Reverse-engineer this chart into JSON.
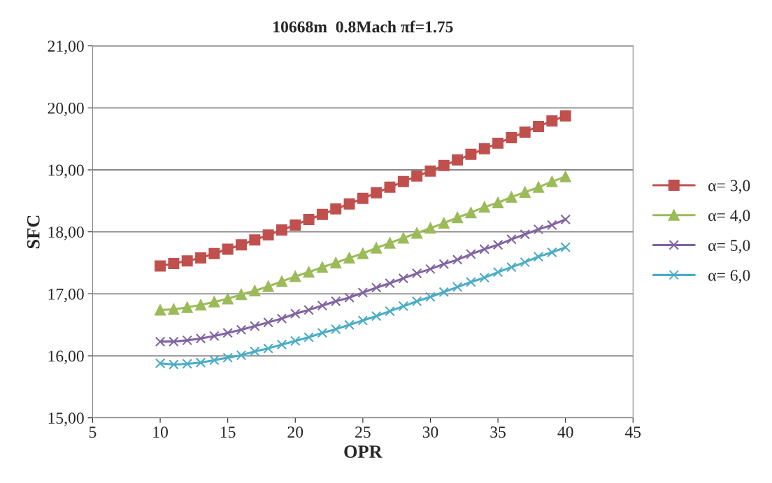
{
  "chart_data": {
    "type": "line",
    "title": "10668m  0.8Mach πf=1.75",
    "xlabel": "OPR",
    "ylabel": "SFC",
    "x": [
      10,
      11,
      12,
      13,
      14,
      15,
      16,
      17,
      18,
      19,
      20,
      21,
      22,
      23,
      24,
      25,
      26,
      27,
      28,
      29,
      30,
      31,
      32,
      33,
      34,
      35,
      36,
      37,
      38,
      39,
      40
    ],
    "series": [
      {
        "name": "α= 3,0",
        "color": "#c0504d",
        "marker": "square",
        "values": [
          17.45,
          17.49,
          17.53,
          17.58,
          17.65,
          17.72,
          17.79,
          17.87,
          17.95,
          18.03,
          18.11,
          18.2,
          18.28,
          18.37,
          18.45,
          18.54,
          18.63,
          18.72,
          18.81,
          18.9,
          18.98,
          19.07,
          19.16,
          19.25,
          19.34,
          19.43,
          19.52,
          19.61,
          19.7,
          19.79,
          19.87
        ]
      },
      {
        "name": "α= 4,0",
        "color": "#9bbb59",
        "marker": "triangle",
        "values": [
          16.74,
          16.75,
          16.78,
          16.82,
          16.87,
          16.92,
          16.99,
          17.05,
          17.12,
          17.2,
          17.28,
          17.35,
          17.43,
          17.5,
          17.58,
          17.65,
          17.74,
          17.82,
          17.9,
          17.98,
          18.06,
          18.14,
          18.23,
          18.31,
          18.4,
          18.47,
          18.56,
          18.64,
          18.72,
          18.81,
          18.89
        ]
      },
      {
        "name": "α= 5,0",
        "color": "#8064a2",
        "marker": "cross",
        "values": [
          16.23,
          16.23,
          16.25,
          16.28,
          16.32,
          16.37,
          16.42,
          16.48,
          16.54,
          16.6,
          16.68,
          16.74,
          16.81,
          16.88,
          16.94,
          17.02,
          17.1,
          17.17,
          17.25,
          17.33,
          17.4,
          17.48,
          17.55,
          17.64,
          17.72,
          17.79,
          17.88,
          17.96,
          18.04,
          18.11,
          18.2
        ]
      },
      {
        "name": "α= 6,0",
        "color": "#4bacc6",
        "marker": "cross",
        "values": [
          15.88,
          15.86,
          15.87,
          15.89,
          15.93,
          15.97,
          16.01,
          16.07,
          16.12,
          16.18,
          16.24,
          16.3,
          16.37,
          16.43,
          16.5,
          16.57,
          16.64,
          16.72,
          16.8,
          16.88,
          16.95,
          17.03,
          17.11,
          17.19,
          17.26,
          17.35,
          17.43,
          17.51,
          17.6,
          17.67,
          17.75
        ]
      }
    ],
    "xlim": [
      5,
      45
    ],
    "xticks": [
      5,
      10,
      15,
      20,
      25,
      30,
      35,
      40,
      45
    ],
    "ylim": [
      15,
      21
    ],
    "yticks": [
      {
        "value": 15,
        "label": "15,00"
      },
      {
        "value": 16,
        "label": "16,00"
      },
      {
        "value": 17,
        "label": "17,00"
      },
      {
        "value": 18,
        "label": "18,00"
      },
      {
        "value": 19,
        "label": "19,00"
      },
      {
        "value": 20,
        "label": "20,00"
      },
      {
        "value": 21,
        "label": "21,00"
      }
    ],
    "grid": "y",
    "legend": "right",
    "line_style": "solid"
  }
}
